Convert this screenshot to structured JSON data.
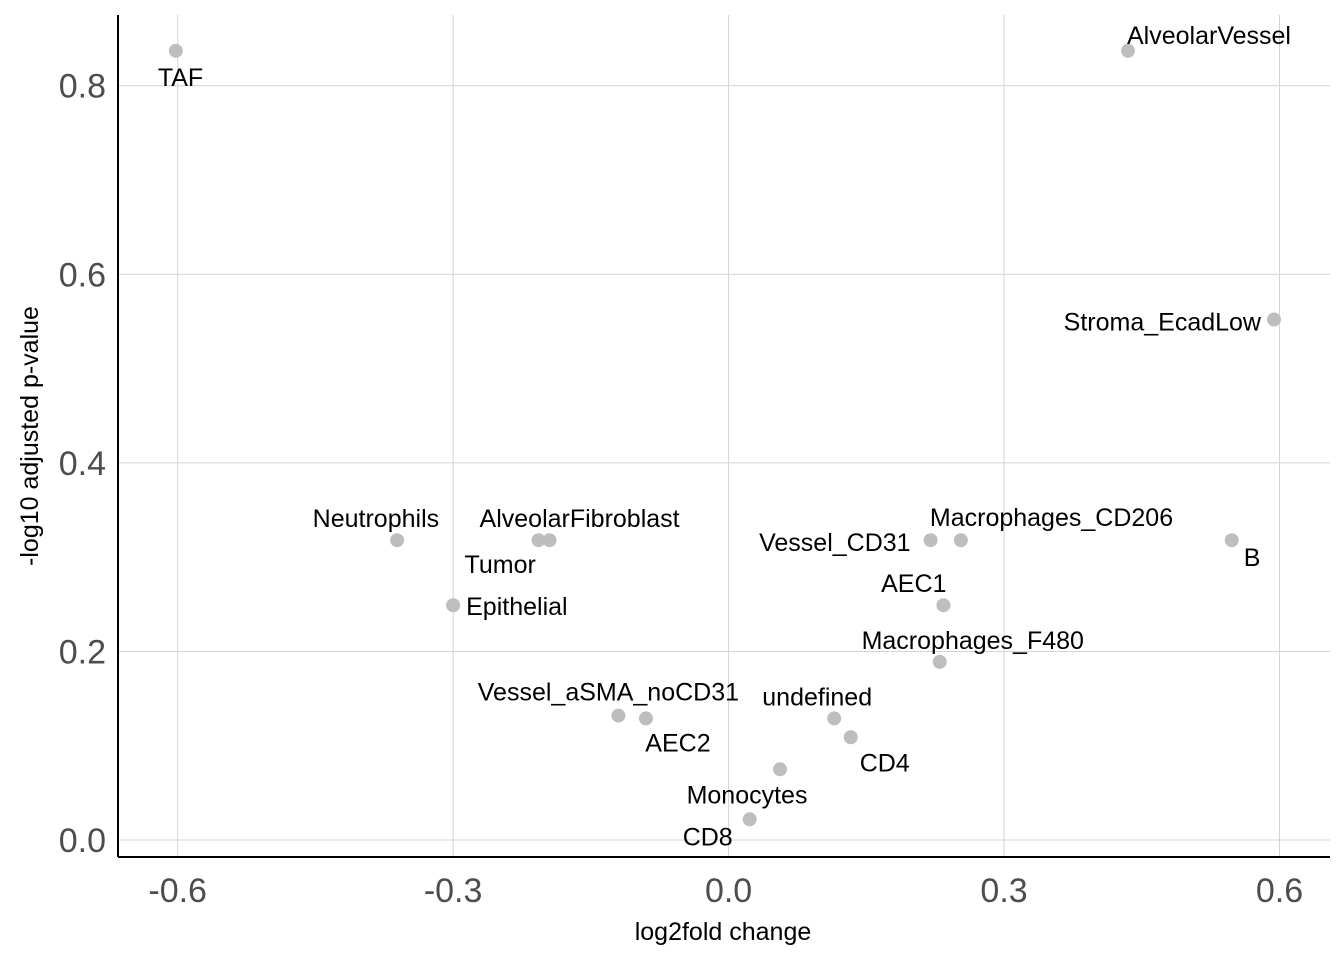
{
  "chart_data": {
    "type": "scatter",
    "title": "",
    "xlabel": "log2fold change",
    "ylabel": "-log10 adjusted p-value",
    "xlim": [
      -0.665,
      0.655
    ],
    "ylim": [
      -0.018,
      0.875
    ],
    "x_ticks": [
      -0.6,
      -0.3,
      0.0,
      0.3,
      0.6
    ],
    "x_tick_labels": [
      "-0.6",
      "-0.3",
      "0.0",
      "0.3",
      "0.6"
    ],
    "y_ticks": [
      0.0,
      0.2,
      0.4,
      0.6,
      0.8
    ],
    "y_tick_labels": [
      "0.0",
      "0.2",
      "0.4",
      "0.6",
      "0.8"
    ],
    "grid": true,
    "point_color": "#bebebe",
    "points": [
      {
        "label": "TAF",
        "x": -0.602,
        "y": 0.837
      },
      {
        "label": "AlveolarVessel",
        "x": 0.435,
        "y": 0.837
      },
      {
        "label": "Stroma_EcadLow",
        "x": 0.594,
        "y": 0.552
      },
      {
        "label": "Neutrophils",
        "x": -0.361,
        "y": 0.318
      },
      {
        "label": "AlveolarFibroblast",
        "x": -0.195,
        "y": 0.318
      },
      {
        "label": "Tumor",
        "x": -0.207,
        "y": 0.318
      },
      {
        "label": "Epithelial",
        "x": -0.3,
        "y": 0.249
      },
      {
        "label": "Vessel_CD31",
        "x": 0.22,
        "y": 0.318
      },
      {
        "label": "Macrophages_CD206",
        "x": 0.253,
        "y": 0.318
      },
      {
        "label": "B",
        "x": 0.548,
        "y": 0.318
      },
      {
        "label": "AEC1",
        "x": 0.234,
        "y": 0.249
      },
      {
        "label": "Macrophages_F480",
        "x": 0.23,
        "y": 0.189
      },
      {
        "label": "Vessel_aSMA_noCD31",
        "x": -0.12,
        "y": 0.132
      },
      {
        "label": "AEC2",
        "x": -0.09,
        "y": 0.129
      },
      {
        "label": "undefined",
        "x": 0.115,
        "y": 0.129
      },
      {
        "label": "CD4",
        "x": 0.133,
        "y": 0.109
      },
      {
        "label": "Monocytes",
        "x": 0.056,
        "y": 0.075
      },
      {
        "label": "CD8",
        "x": 0.023,
        "y": 0.022
      }
    ]
  }
}
